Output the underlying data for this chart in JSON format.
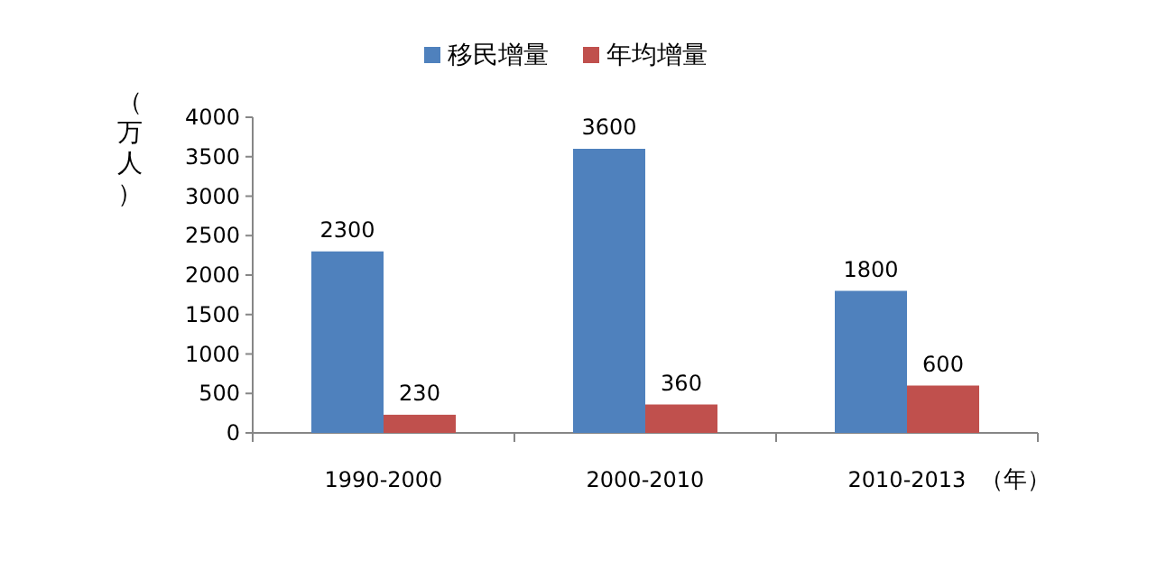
{
  "chart_data": {
    "type": "bar",
    "categories": [
      "1990-2000",
      "2000-2010",
      "2010-2013"
    ],
    "series": [
      {
        "name": "移民增量",
        "color": "#4f81bd",
        "values": [
          2300,
          3600,
          1800
        ]
      },
      {
        "name": "年均增量",
        "color": "#c0504d",
        "values": [
          230,
          360,
          600
        ]
      }
    ],
    "ylim": [
      0,
      4000
    ],
    "yticks": [
      0,
      500,
      1000,
      1500,
      2000,
      2500,
      3000,
      3500,
      4000
    ],
    "ylabel": "（万人）",
    "xlabel": "（年）",
    "data_labels": true,
    "legend": "top",
    "grid": false
  }
}
